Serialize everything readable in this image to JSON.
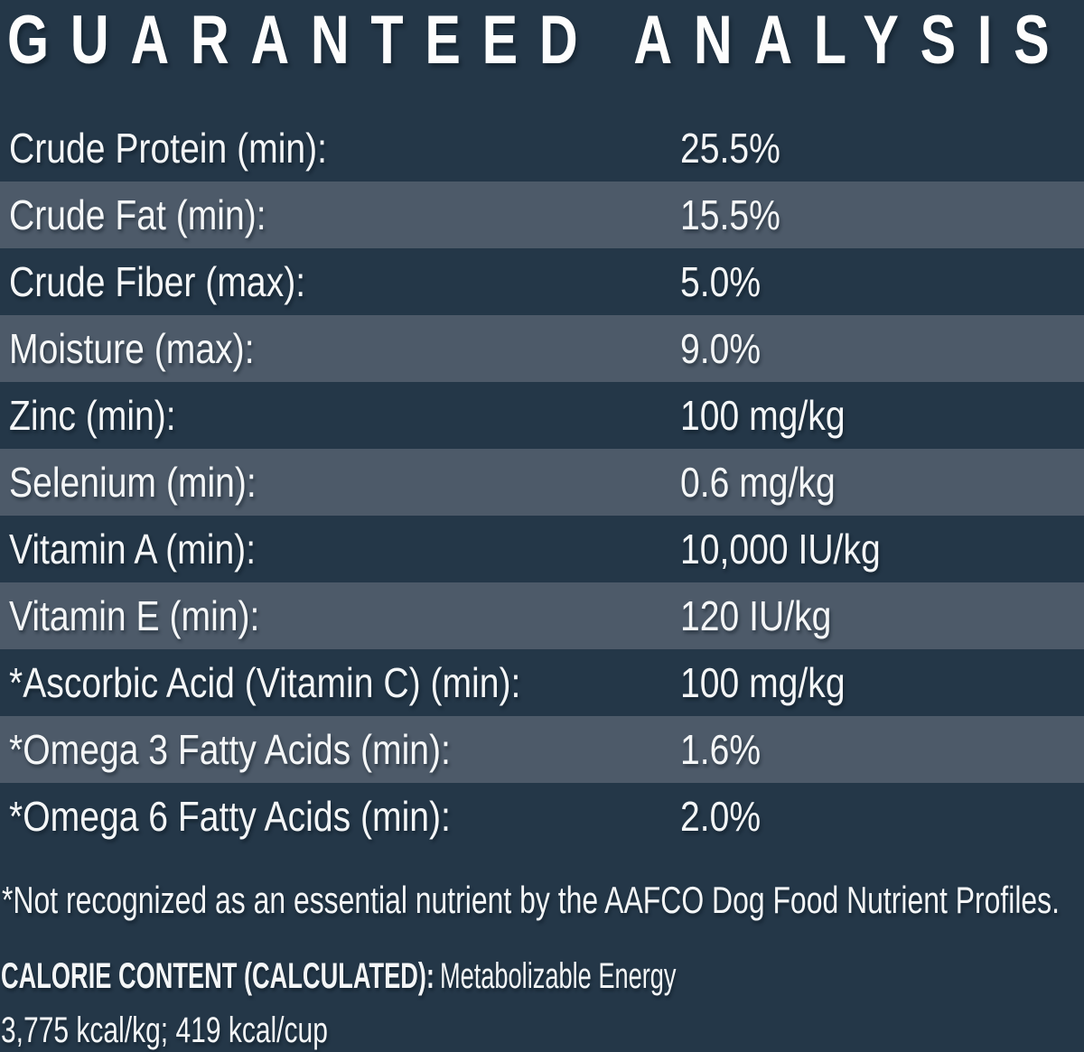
{
  "title": "GUARANTEED ANALYSIS",
  "colors": {
    "background": "#243748",
    "stripe": "#4d5a69",
    "text": "#f4f6f7"
  },
  "table": {
    "rows": [
      {
        "label": "Crude Protein (min):",
        "value": "25.5%"
      },
      {
        "label": "Crude Fat (min):",
        "value": "15.5%"
      },
      {
        "label": "Crude Fiber (max):",
        "value": "5.0%"
      },
      {
        "label": "Moisture (max):",
        "value": "9.0%"
      },
      {
        "label": "Zinc (min):",
        "value": "100 mg/kg"
      },
      {
        "label": "Selenium (min):",
        "value": "0.6 mg/kg"
      },
      {
        "label": "Vitamin A (min):",
        "value": "10,000 IU/kg"
      },
      {
        "label": "Vitamin E (min):",
        "value": "120 IU/kg"
      },
      {
        "label": "*Ascorbic Acid (Vitamin C) (min):",
        "value": "100 mg/kg"
      },
      {
        "label": "*Omega 3 Fatty Acids (min):",
        "value": "1.6%"
      },
      {
        "label": "*Omega 6 Fatty Acids (min):",
        "value": "2.0%"
      }
    ]
  },
  "footnote": "*Not recognized as an essential nutrient by the AAFCO Dog Food Nutrient Profiles.",
  "calorie": {
    "heading": "CALORIE CONTENT (CALCULATED):",
    "description": "Metabolizable Energy",
    "values": "3,775 kcal/kg; 419 kcal/cup"
  }
}
